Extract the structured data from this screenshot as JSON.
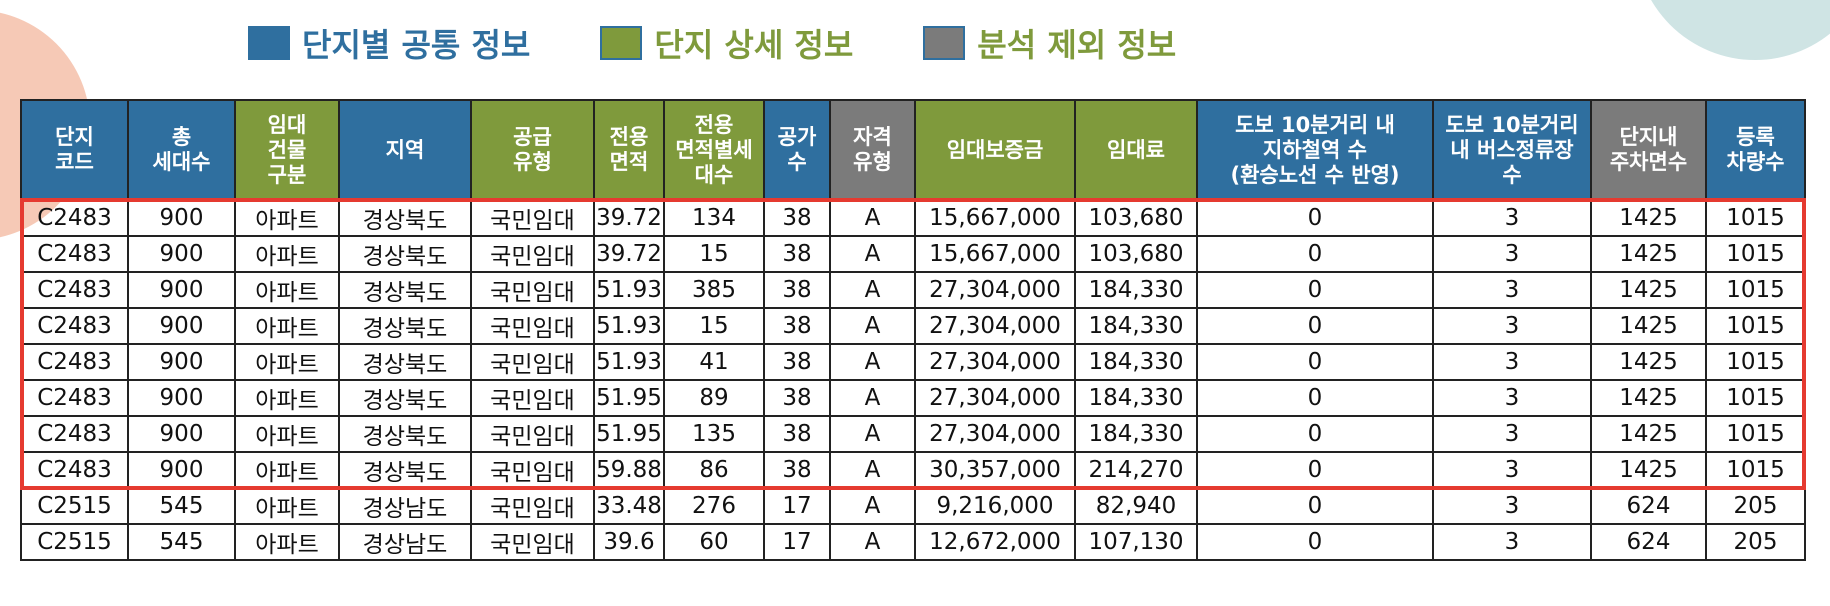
{
  "legend": [
    {
      "label": "단지별 공통 정보",
      "color": "#2f6f9f",
      "text_color": "#2f6f9f"
    },
    {
      "label": "단지 상세 정보",
      "color": "#7f9a3c",
      "text_color": "#7f9a3c"
    },
    {
      "label": "분석 제외 정보",
      "color": "#7b7b7b",
      "text_color": "#7f9a3c"
    }
  ],
  "table": {
    "columns": [
      {
        "label": "단지\n코드",
        "group": "blue"
      },
      {
        "label": "총\n세대수",
        "group": "blue"
      },
      {
        "label": "임대\n건물\n구분",
        "group": "green"
      },
      {
        "label": "지역",
        "group": "blue"
      },
      {
        "label": "공급\n유형",
        "group": "green"
      },
      {
        "label": "전용\n면적",
        "group": "green"
      },
      {
        "label": "전용\n면적별세\n대수",
        "group": "green"
      },
      {
        "label": "공가\n수",
        "group": "blue"
      },
      {
        "label": "자격\n유형",
        "group": "gray"
      },
      {
        "label": "임대보증금",
        "group": "green"
      },
      {
        "label": "임대료",
        "group": "green"
      },
      {
        "label": "도보 10분거리 내\n지하철역 수\n(환승노선 수 반영)",
        "group": "blue"
      },
      {
        "label": "도보 10분거리\n내 버스정류장\n수",
        "group": "blue"
      },
      {
        "label": "단지내\n주차면수",
        "group": "gray"
      },
      {
        "label": "등록\n차량수",
        "group": "blue"
      }
    ],
    "rows": [
      [
        "C2483",
        "900",
        "아파트",
        "경상북도",
        "국민임대",
        "39.72",
        "134",
        "38",
        "A",
        "15,667,000",
        "103,680",
        "0",
        "3",
        "1425",
        "1015"
      ],
      [
        "C2483",
        "900",
        "아파트",
        "경상북도",
        "국민임대",
        "39.72",
        "15",
        "38",
        "A",
        "15,667,000",
        "103,680",
        "0",
        "3",
        "1425",
        "1015"
      ],
      [
        "C2483",
        "900",
        "아파트",
        "경상북도",
        "국민임대",
        "51.93",
        "385",
        "38",
        "A",
        "27,304,000",
        "184,330",
        "0",
        "3",
        "1425",
        "1015"
      ],
      [
        "C2483",
        "900",
        "아파트",
        "경상북도",
        "국민임대",
        "51.93",
        "15",
        "38",
        "A",
        "27,304,000",
        "184,330",
        "0",
        "3",
        "1425",
        "1015"
      ],
      [
        "C2483",
        "900",
        "아파트",
        "경상북도",
        "국민임대",
        "51.93",
        "41",
        "38",
        "A",
        "27,304,000",
        "184,330",
        "0",
        "3",
        "1425",
        "1015"
      ],
      [
        "C2483",
        "900",
        "아파트",
        "경상북도",
        "국민임대",
        "51.95",
        "89",
        "38",
        "A",
        "27,304,000",
        "184,330",
        "0",
        "3",
        "1425",
        "1015"
      ],
      [
        "C2483",
        "900",
        "아파트",
        "경상북도",
        "국민임대",
        "51.95",
        "135",
        "38",
        "A",
        "27,304,000",
        "184,330",
        "0",
        "3",
        "1425",
        "1015"
      ],
      [
        "C2483",
        "900",
        "아파트",
        "경상북도",
        "국민임대",
        "59.88",
        "86",
        "38",
        "A",
        "30,357,000",
        "214,270",
        "0",
        "3",
        "1425",
        "1015"
      ],
      [
        "C2515",
        "545",
        "아파트",
        "경상남도",
        "국민임대",
        "33.48",
        "276",
        "17",
        "A",
        "9,216,000",
        "82,940",
        "0",
        "3",
        "624",
        "205"
      ],
      [
        "C2515",
        "545",
        "아파트",
        "경상남도",
        "국민임대",
        "39.6",
        "60",
        "17",
        "A",
        "12,672,000",
        "107,130",
        "0",
        "3",
        "624",
        "205"
      ]
    ],
    "highlight_color": "#e53a30",
    "highlighted_rows": [
      0,
      1,
      2,
      3,
      4,
      5,
      6,
      7
    ]
  }
}
